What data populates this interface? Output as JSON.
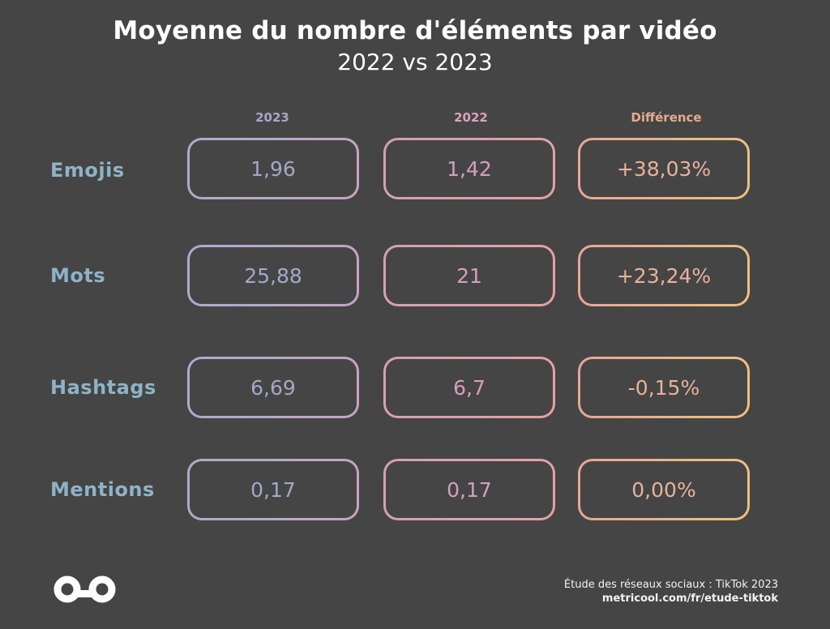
{
  "header": {
    "title": "Moyenne du nombre d'éléments par vidéo",
    "subtitle": "2022 vs 2023"
  },
  "chart_data": {
    "type": "table",
    "title": "Moyenne du nombre d'éléments par vidéo",
    "subtitle": "2022 vs 2023",
    "columns": [
      "2023",
      "2022",
      "Différence"
    ],
    "rows": [
      {
        "label": "Emojis",
        "v2023": "1,96",
        "v2022": "1,42",
        "diff": "+38,03%"
      },
      {
        "label": "Mots",
        "v2023": "25,88",
        "v2022": "21",
        "diff": "+23,24%"
      },
      {
        "label": "Hashtags",
        "v2023": "6,69",
        "v2022": "6,7",
        "diff": "-0,15%"
      },
      {
        "label": "Mentions",
        "v2023": "0,17",
        "v2022": "0,17",
        "diff": "0,00%"
      }
    ]
  },
  "colors": {
    "background": "#454545",
    "row_label": "#8eb3c6",
    "col_2023": "#a7a6c8",
    "col_2022": "#d5a1b7",
    "col_diff": "#e8b29c"
  },
  "footer": {
    "logo_icon": "metricool-infinity-icon",
    "source_line": "Étude des réseaux sociaux : TikTok 2023",
    "url": "metricool.com/fr/etude-tiktok"
  }
}
